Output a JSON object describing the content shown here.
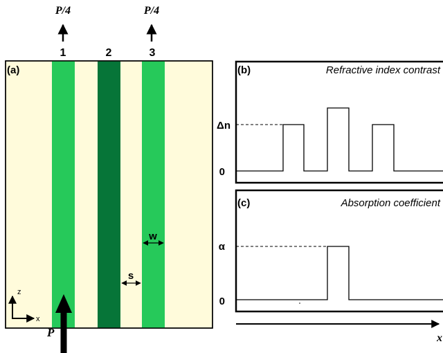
{
  "colors": {
    "background": "#fffbdb",
    "waveguide_light": "#26c95a",
    "waveguide_dark": "#067538",
    "line": "#000000"
  },
  "panel_a": {
    "label": "(a)",
    "waveguide_labels": [
      "1",
      "2",
      "3"
    ],
    "output_labels": [
      "P/4",
      "P/4"
    ],
    "input_label": "P",
    "dim_s": "s",
    "dim_w": "w",
    "axis_z": "z",
    "axis_x": "x"
  },
  "panel_b": {
    "label": "(b)",
    "title": "Refractive index contrast",
    "y_high": "Δn",
    "y_zero": "0",
    "profile_levels": [
      0,
      1,
      0,
      1.4,
      0,
      1,
      0
    ]
  },
  "panel_c": {
    "label": "(c)",
    "title": "Absorption coefficient",
    "y_high": "α",
    "y_zero": "0",
    "profile_levels": [
      0,
      0,
      0,
      1,
      0,
      0,
      0
    ]
  },
  "x_axis_label": "x"
}
